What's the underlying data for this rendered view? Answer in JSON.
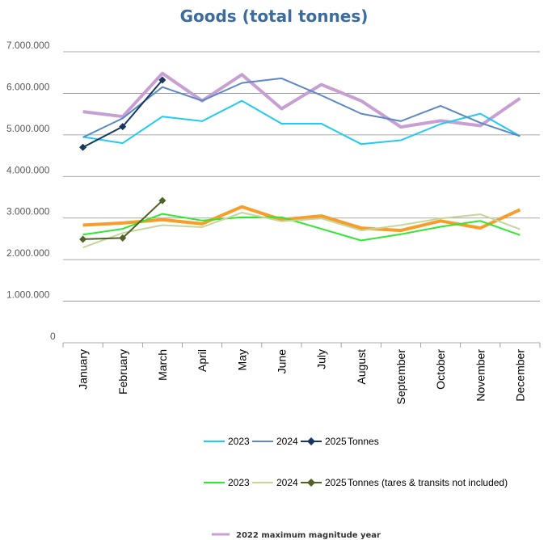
{
  "chart_data": {
    "type": "line",
    "title": "Goods (total tonnes)",
    "categories": [
      "January",
      "February",
      "March",
      "April",
      "May",
      "June",
      "July",
      "August",
      "September",
      "October",
      "November",
      "December"
    ],
    "ylim": [
      0,
      7000000
    ],
    "yticks": [
      "0",
      "1.000.000",
      "2.000.000",
      "3.000.000",
      "4.000.000",
      "5.000.000",
      "6.000.000",
      "7.000.000"
    ],
    "grid": true,
    "series": [
      {
        "name": "2023",
        "group": "Tonnes",
        "color": "#1fcbf2",
        "width": 2,
        "marker": "none",
        "values": [
          4950000,
          4800000,
          5440000,
          5330000,
          5820000,
          5270000,
          5270000,
          4780000,
          4870000,
          5260000,
          5510000,
          4970000
        ]
      },
      {
        "name": "2024",
        "group": "Tonnes",
        "color": "#5b89c7",
        "width": 2,
        "marker": "none",
        "values": [
          4940000,
          5400000,
          6150000,
          5820000,
          6250000,
          6360000,
          5950000,
          5510000,
          5330000,
          5700000,
          5290000,
          4970000
        ]
      },
      {
        "name": "2025",
        "group": "Tonnes",
        "color": "#17375e",
        "width": 2,
        "marker": "diamond",
        "values": [
          4700000,
          5200000,
          6320000,
          null,
          null,
          null,
          null,
          null,
          null,
          null,
          null,
          null
        ]
      },
      {
        "name": "2023",
        "group": "Tonnes  (tares & transits not included)",
        "color": "#2fe82f",
        "width": 2,
        "marker": "none",
        "values": [
          2600000,
          2740000,
          3100000,
          2940000,
          3020000,
          3020000,
          2740000,
          2460000,
          2610000,
          2790000,
          2930000,
          2590000
        ]
      },
      {
        "name": "2024",
        "group": "Tonnes  (tares & transits not included)",
        "color": "#c4d79b",
        "width": 2,
        "marker": "none",
        "values": [
          2290000,
          2640000,
          2830000,
          2780000,
          3130000,
          2920000,
          2990000,
          2700000,
          2830000,
          2990000,
          3090000,
          2730000
        ]
      },
      {
        "name": "2025",
        "group": "Tonnes  (tares & transits not included)",
        "color": "#4f6228",
        "width": 2,
        "marker": "diamond",
        "values": [
          2490000,
          2520000,
          3420000,
          null,
          null,
          null,
          null,
          null,
          null,
          null,
          null,
          null
        ]
      },
      {
        "name": "",
        "group": "2022 maximum magnitude year",
        "color": "#f79d2a",
        "width": 4,
        "marker": "none",
        "values": [
          2830000,
          2880000,
          2960000,
          2860000,
          3270000,
          2960000,
          3050000,
          2760000,
          2700000,
          2930000,
          2760000,
          3200000
        ]
      },
      {
        "name": "",
        "group": "2022 maximum magnitude year",
        "color": "#c79fd2",
        "width": 4,
        "marker": "none",
        "values": [
          5560000,
          5440000,
          6480000,
          5820000,
          6450000,
          5630000,
          6210000,
          5820000,
          5190000,
          5340000,
          5220000,
          5880000
        ]
      }
    ],
    "legend": {
      "row1": {
        "labels": [
          "2023",
          "2024",
          "2025"
        ],
        "group_label": "Tonnes",
        "colors": [
          "#1fcbf2",
          "#5b89c7",
          "#17375e"
        ]
      },
      "row2": {
        "labels": [
          "2023",
          "2024",
          "2025"
        ],
        "group_label": "Tonnes  (tares & transits not included)",
        "colors": [
          "#2fe82f",
          "#c4d79b",
          "#4f6228"
        ]
      },
      "row3": {
        "label": "2022 maximum magnitude year",
        "color": "#c79fd2"
      }
    }
  }
}
